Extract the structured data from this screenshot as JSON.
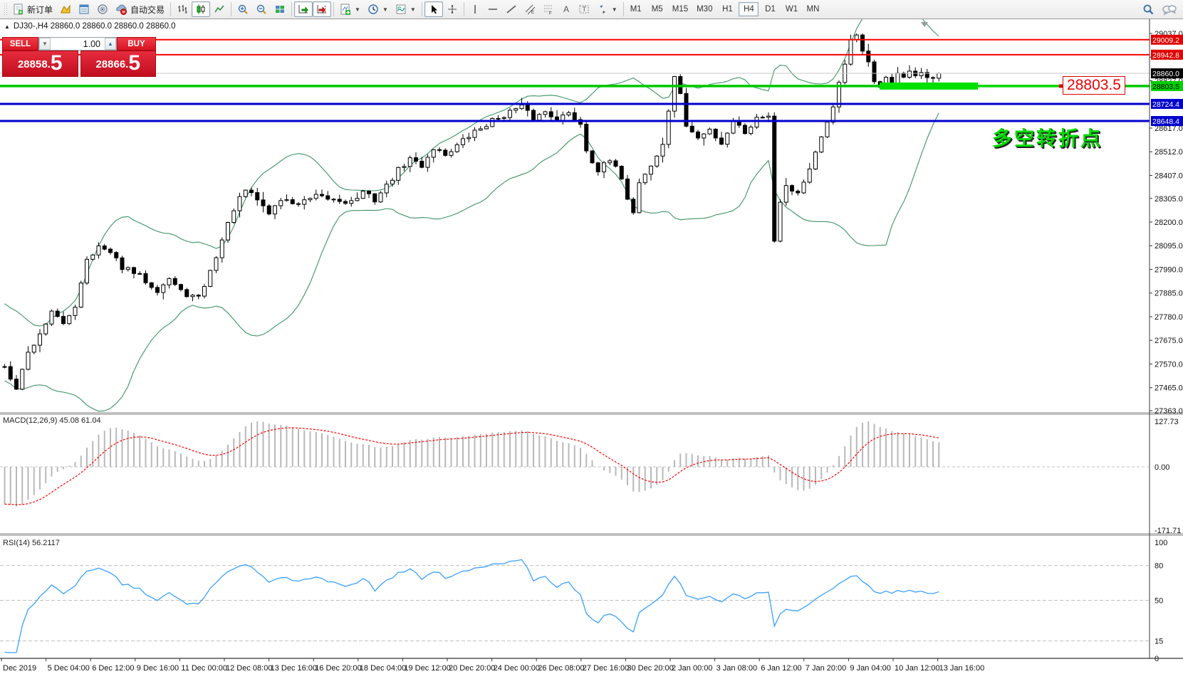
{
  "toolbar": {
    "new_order_label": "新订单",
    "autotrading_label": "自动交易",
    "timeframes": [
      "M1",
      "M5",
      "M15",
      "M30",
      "H1",
      "H4",
      "D1",
      "W1",
      "MN"
    ],
    "active_timeframe": "H4",
    "icons": [
      "new-order-icon",
      "chart-profiles-icon",
      "data-window-icon",
      "navigator-icon",
      "autotrading-icon",
      "bars-icon",
      "candles-icon",
      "line-chart-icon",
      "zoom-in-icon",
      "zoom-out-icon",
      "tile-windows-icon",
      "auto-scroll-icon",
      "chart-shift-icon",
      "indicators-icon",
      "periods-icon",
      "templates-icon",
      "cursor-icon",
      "crosshair-icon",
      "vertical-line-icon",
      "horizontal-line-icon",
      "trendline-icon",
      "channel-icon",
      "fibonacci-icon",
      "text-icon",
      "label-icon",
      "shapes-icon",
      "search-icon",
      "chat-icon"
    ]
  },
  "chart": {
    "title": "DJ30-,H4  28860.0 28860.0 28860.0 28860.0",
    "annotation_text": "多空转折点",
    "callout_text": "28803.5"
  },
  "trade_panel": {
    "sell_label": "SELL",
    "buy_label": "BUY",
    "volume": "1.00",
    "sell_price_main": "28858",
    "sell_price_frac": "5",
    "buy_price_main": "28866",
    "buy_price_frac": "5",
    "panel_color": "#d81423"
  },
  "chart_data": {
    "type": "candlestick",
    "symbol": "DJ30-",
    "timeframe": "H4",
    "last_ohlc": [
      28860.0,
      28860.0,
      28860.0,
      28860.0
    ],
    "price_axis_ticks": [
      29037.0,
      28932.0,
      28827.0,
      28617.0,
      28512.0,
      28407.0,
      28305.0,
      28200.0,
      28095.0,
      27990.0,
      27885.0,
      27780.0,
      27675.0,
      27570.0,
      27465.0,
      27363.0
    ],
    "price_range_top": 29037.0,
    "price_range_bottom": 27363.0,
    "levels": [
      {
        "price": 29009.2,
        "label": "29009.2",
        "line_color": "#ff0000",
        "line_width": 2,
        "tag_bg": "#e00000",
        "tag_fg": "#ffffff"
      },
      {
        "price": 28942.8,
        "label": "28942.8",
        "line_color": "#ff0000",
        "line_width": 2,
        "tag_bg": "#e00000",
        "tag_fg": "#ffffff"
      },
      {
        "price": 28860.0,
        "label": "28860.0",
        "line_color": "#c8c8c8",
        "line_width": 1,
        "tag_bg": "#000000",
        "tag_fg": "#ffffff"
      },
      {
        "price": 28803.5,
        "label": "28803.5",
        "line_color": "#00c800",
        "line_width": 3.5,
        "tag_bg": "#00d000",
        "tag_fg": "#000000"
      },
      {
        "price": 28724.4,
        "label": "28724.4",
        "line_color": "#0000cd",
        "line_width": 3,
        "tag_bg": "#0000cd",
        "tag_fg": "#ffffff"
      },
      {
        "price": 28648.4,
        "label": "28648.4",
        "line_color": "#0000cd",
        "line_width": 3,
        "tag_bg": "#0000cd",
        "tag_fg": "#ffffff"
      }
    ],
    "highlight": {
      "price": 28803.5,
      "color": "#00e000"
    },
    "x_axis_labels": [
      "Dec 2019",
      "5 Dec 04:00",
      "6 Dec 12:00",
      "9 Dec 16:00",
      "11 Dec 00:00",
      "12 Dec 08:00",
      "13 Dec 16:00",
      "16 Dec 20:00",
      "18 Dec 04:00",
      "19 Dec 12:00",
      "20 Dec 20:00",
      "24 Dec 00:00",
      "26 Dec 08:00",
      "27 Dec 16:00",
      "30 Dec 20:00",
      "2 Jan 00:00",
      "3 Jan 08:00",
      "6 Jan 12:00",
      "7 Jan 20:00",
      "9 Jan 04:00",
      "10 Jan 12:00",
      "13 Jan 16:00"
    ],
    "bars_count": 160,
    "warmup_anchors": [
      [
        -35,
        28080
      ],
      [
        -28,
        27980
      ],
      [
        -20,
        27840
      ],
      [
        -12,
        27700
      ],
      [
        -6,
        27600
      ],
      [
        -1,
        27560
      ]
    ],
    "price_anchors": [
      [
        0,
        27560
      ],
      [
        2,
        27470
      ],
      [
        4,
        27620
      ],
      [
        6,
        27700
      ],
      [
        8,
        27810
      ],
      [
        10,
        27740
      ],
      [
        12,
        27830
      ],
      [
        14,
        28040
      ],
      [
        16,
        28090
      ],
      [
        18,
        28060
      ],
      [
        20,
        28000
      ],
      [
        23,
        27960
      ],
      [
        26,
        27900
      ],
      [
        28,
        27950
      ],
      [
        30,
        27890
      ],
      [
        33,
        27860
      ],
      [
        35,
        27980
      ],
      [
        37,
        28120
      ],
      [
        39,
        28260
      ],
      [
        41,
        28340
      ],
      [
        43,
        28300
      ],
      [
        45,
        28240
      ],
      [
        47,
        28300
      ],
      [
        50,
        28280
      ],
      [
        53,
        28310
      ],
      [
        56,
        28300
      ],
      [
        59,
        28290
      ],
      [
        61,
        28330
      ],
      [
        63,
        28300
      ],
      [
        65,
        28360
      ],
      [
        67,
        28430
      ],
      [
        69,
        28480
      ],
      [
        71,
        28450
      ],
      [
        73,
        28530
      ],
      [
        75,
        28500
      ],
      [
        77,
        28540
      ],
      [
        80,
        28600
      ],
      [
        83,
        28650
      ],
      [
        86,
        28690
      ],
      [
        88,
        28710
      ],
      [
        90,
        28660
      ],
      [
        92,
        28690
      ],
      [
        94,
        28660
      ],
      [
        96,
        28680
      ],
      [
        98,
        28640
      ],
      [
        99,
        28520
      ],
      [
        101,
        28430
      ],
      [
        103,
        28470
      ],
      [
        105,
        28400
      ],
      [
        106,
        28310
      ],
      [
        107,
        28240
      ],
      [
        108,
        28380
      ],
      [
        110,
        28450
      ],
      [
        112,
        28540
      ],
      [
        114,
        28850
      ],
      [
        115,
        28760
      ],
      [
        116,
        28630
      ],
      [
        118,
        28570
      ],
      [
        120,
        28610
      ],
      [
        122,
        28550
      ],
      [
        124,
        28650
      ],
      [
        126,
        28600
      ],
      [
        128,
        28660
      ],
      [
        130,
        28680
      ],
      [
        131,
        28120
      ],
      [
        132,
        28300
      ],
      [
        133,
        28360
      ],
      [
        135,
        28330
      ],
      [
        137,
        28430
      ],
      [
        139,
        28570
      ],
      [
        141,
        28720
      ],
      [
        143,
        28900
      ],
      [
        144,
        29000
      ],
      [
        145,
        29020
      ],
      [
        146,
        28960
      ],
      [
        147,
        28920
      ],
      [
        148,
        28820
      ],
      [
        149,
        28790
      ],
      [
        150,
        28850
      ],
      [
        151,
        28815
      ],
      [
        152,
        28860
      ],
      [
        153,
        28830
      ],
      [
        154,
        28870
      ],
      [
        155,
        28840
      ],
      [
        156,
        28855
      ],
      [
        157,
        28835
      ],
      [
        158,
        28850
      ],
      [
        159,
        28860
      ]
    ],
    "bollinger": {
      "period": 20,
      "deviation": 2,
      "color": "#3c9464"
    },
    "macd": {
      "label": "MACD(12,26,9) 45.08 61.04",
      "params": [
        12,
        26,
        9
      ],
      "main_value": 45.08,
      "signal_value": 61.04,
      "axis_ticks": [
        "127.73",
        "0.00",
        "-171.71"
      ],
      "axis_max": 127.73,
      "axis_min": -171.71,
      "histogram_color": "#b8b8b8",
      "signal_color": "#ff0000"
    },
    "rsi": {
      "label": "RSI(14) 56.2117",
      "period": 14,
      "value": 56.2117,
      "axis_ticks": [
        "100",
        "80",
        "50",
        "15",
        "0"
      ],
      "levels_dashed": [
        80,
        50,
        15
      ],
      "line_color": "#3aa0ff"
    }
  }
}
